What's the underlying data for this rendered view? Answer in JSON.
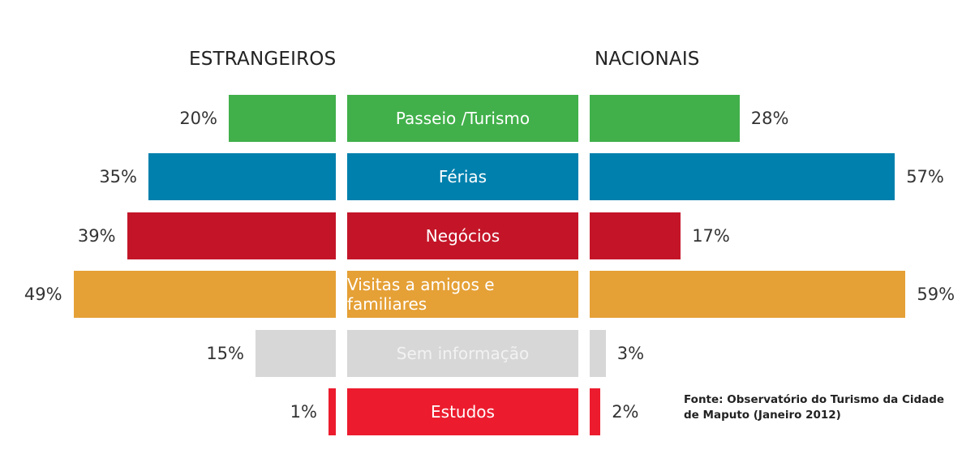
{
  "chart_data": {
    "type": "bar",
    "orientation": "horizontal-butterfly",
    "left_title": "ESTRANGEIROS",
    "right_title": "NACIONAIS",
    "categories": [
      "Passeio /Turismo",
      "Férias",
      "Negócios",
      "Visitas a amigos e familiares",
      "Sem informação",
      "Estudos"
    ],
    "series": [
      {
        "name": "ESTRANGEIROS",
        "values": [
          20,
          35,
          39,
          49,
          15,
          1
        ],
        "labels": [
          "20%",
          "35%",
          "39%",
          "49%",
          "15%",
          "1%"
        ]
      },
      {
        "name": "NACIONAIS",
        "values": [
          28,
          57,
          17,
          59,
          3,
          2
        ],
        "labels": [
          "28%",
          "57%",
          "17%",
          "59%",
          "3%",
          "2%"
        ]
      }
    ],
    "colors": [
      "#41b04a",
      "#0080ad",
      "#c41528",
      "#e5a036",
      "#d7d7d7",
      "#ec1c2e"
    ],
    "annotation": "Fonte: Observatório do Turismo da Cidade de Maputo (Janeiro 2012)"
  }
}
